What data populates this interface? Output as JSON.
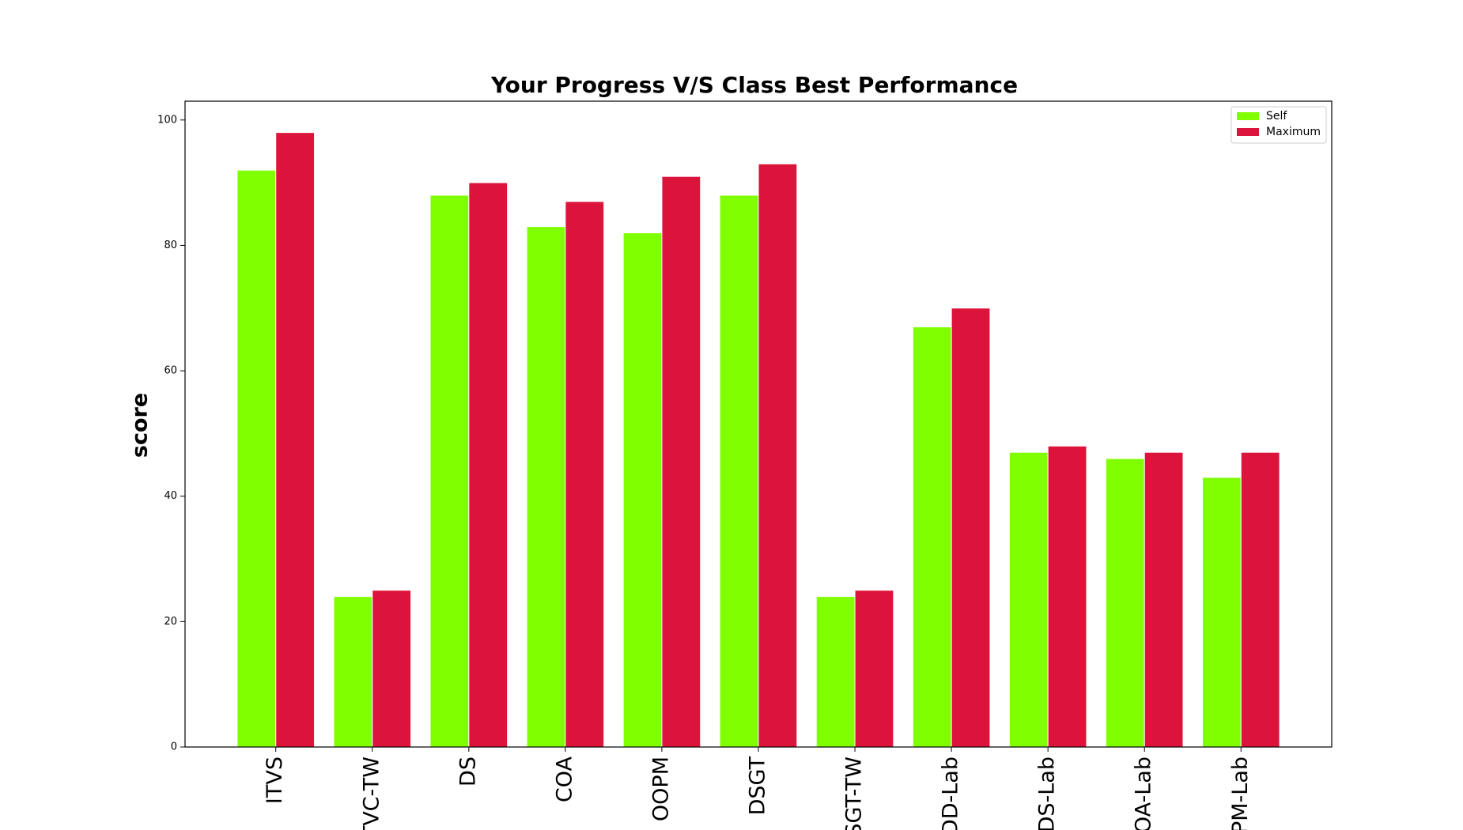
{
  "chart_data": {
    "type": "bar",
    "title": "Your Progress V/S Class Best Performance",
    "y_label": "score",
    "categories": [
      "ITVS",
      "TVC-TW",
      "DS",
      "COA",
      "OOPM",
      "DSGT",
      "SGT-TW",
      "DD-Lab",
      "DS-Lab",
      "COA-Lab",
      "PM-Lab"
    ],
    "series": [
      {
        "name": "Self",
        "color": "#7fff00",
        "values": [
          92,
          24,
          88,
          83,
          82,
          88,
          24,
          67,
          47,
          46,
          43
        ]
      },
      {
        "name": "Maximum",
        "color": "#dc143c",
        "values": [
          98,
          25,
          90,
          87,
          91,
          93,
          25,
          70,
          48,
          47,
          47
        ]
      }
    ],
    "ylim": [
      0,
      103
    ],
    "yticks": [
      0,
      20,
      40,
      60,
      80,
      100
    ],
    "legend": "upper right"
  }
}
